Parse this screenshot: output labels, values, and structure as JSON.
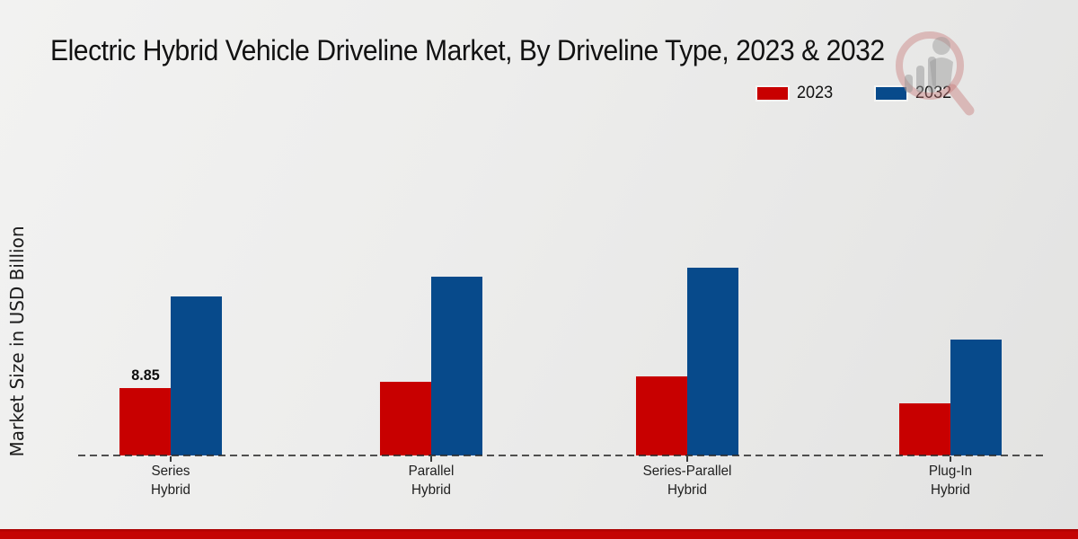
{
  "title": "Electric Hybrid Vehicle Driveline Market, By Driveline Type, 2023 & 2032",
  "y_axis_label": "Market Size in USD Billion",
  "legend": {
    "items": [
      {
        "label": "2023",
        "color": "#c80000"
      },
      {
        "label": "2032",
        "color": "#074a8b"
      }
    ]
  },
  "chart_data": {
    "type": "bar",
    "title": "Electric Hybrid Vehicle Driveline Market, By Driveline Type, 2023 & 2032",
    "xlabel": "",
    "ylabel": "Market Size in USD Billion",
    "categories": [
      "Series Hybrid",
      "Parallel Hybrid",
      "Series-Parallel Hybrid",
      "Plug-In Hybrid"
    ],
    "category_lines": [
      [
        "Series",
        "Hybrid"
      ],
      [
        "Parallel",
        "Hybrid"
      ],
      [
        "Series-Parallel",
        "Hybrid"
      ],
      [
        "Plug-In",
        "Hybrid"
      ]
    ],
    "series": [
      {
        "name": "2023",
        "color": "#c80000",
        "values": [
          8.85,
          9.7,
          10.4,
          6.8
        ]
      },
      {
        "name": "2032",
        "color": "#074a8b",
        "values": [
          20.9,
          23.5,
          24.7,
          15.2
        ]
      }
    ],
    "point_labels": [
      {
        "series_index": 0,
        "category_index": 0,
        "text": "8.85"
      }
    ],
    "ylim": [
      0,
      26
    ],
    "grid": false,
    "legend_position": "top-right",
    "baseline_style": "dashed"
  },
  "icons": {
    "watermark": "magnifier-bar-chart-logo"
  },
  "footer": {
    "accent_bar_color": "#c40303"
  }
}
